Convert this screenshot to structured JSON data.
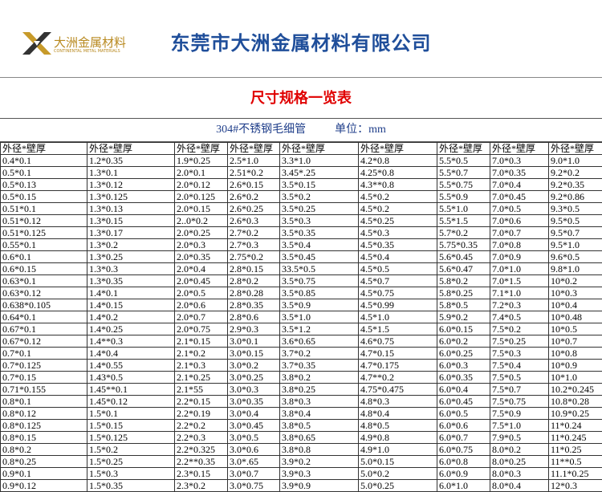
{
  "header": {
    "logo_text": "大洲金属材料",
    "logo_subtext": "CONTINENTAL METAL MATERIALS",
    "company": "东莞市大洲金属材料有限公司"
  },
  "table": {
    "title": "尺寸规格一览表",
    "subtitle": "304#不锈钢毛细管",
    "unit": "单位：mm",
    "headers": [
      "外径*壁厚",
      "外径*壁厚",
      "外径*壁厚",
      "外径*壁厚",
      "外径*壁厚",
      "外径*壁厚",
      "外径*壁厚",
      "外径*壁厚",
      "外径*壁厚"
    ],
    "rows": [
      [
        "0.4*0.1",
        "1.2*0.35",
        "1.9*0.25",
        "2.5*1.0",
        "3.3*1.0",
        "4.2*0.8",
        "5.5*0.5",
        "7.0*0.3",
        "9.0*1.0"
      ],
      [
        "0.5*0.1",
        "1.3*0.1",
        "2.0*0.1",
        "2.51*0.2",
        "3.45*.25",
        "4.25*0.8",
        "5.5*0.7",
        "7.0*0.35",
        "9.2*0.2"
      ],
      [
        "0.5*0.13",
        "1.3*0.12",
        "2.0*0.12",
        "2.6*0.15",
        "3.5*0.15",
        "4.3**0.8",
        "5.5*0.75",
        "7.0*0.4",
        "9.2*0.35"
      ],
      [
        "0.5*0.15",
        "1.3*0.125",
        "2.0*0.125",
        "2.6*0.2",
        "3.5*0.2",
        "4.5*0.2",
        "5.5*0.9",
        "7.0*0.45",
        "9.2*0.86"
      ],
      [
        "0.51*0.1",
        "1.3*0.13",
        "2.0*0.15",
        "2.6*0.25",
        "3.5*0.25",
        "4.5*0.2",
        "5.5*1.0",
        "7.0*0.5",
        "9.3*0.5"
      ],
      [
        "0.51*0.12",
        "1.3*0.15",
        "2..0*0.2",
        "2.6*0.3",
        "3.5*0.3",
        "4.5*0.25",
        "5.5*1.5",
        "7.0*0.6",
        "9.5*0.5"
      ],
      [
        "0.51*0.125",
        "1.3*0.17",
        "2.0*0.25",
        "2.7*0.2",
        "3.5*0.35",
        "4.5*0.3",
        "5.7*0.2",
        "7.0*0.7",
        "9.5*0.7"
      ],
      [
        "0.55*0.1",
        "1.3*0.2",
        "2.0*0.3",
        "2.7*0.3",
        "3.5*0.4",
        "4.5*0.35",
        "5.75*0.35",
        "7.0*0.8",
        "9.5*1.0"
      ],
      [
        "0.6*0.1",
        "1.3*0.25",
        "2.0*0.35",
        "2.75*0.2",
        "3.5*0.45",
        "4.5*0.4",
        "5.6*0.45",
        "7.0*0.9",
        "9.6*0.5"
      ],
      [
        "0.6*0.15",
        "1.3*0.3",
        "2.0*0.4",
        "2.8*0.15",
        "33.5*0.5",
        "4.5*0.5",
        "5.6*0.47",
        "7.0*1.0",
        "9.8*1.0"
      ],
      [
        "0.63*0.1",
        "1.3*0.35",
        "2.0*0.45",
        "2.8*0.2",
        "3.5*0.75",
        "4.5*0.7",
        "5.8*0.2",
        "7.0*1.5",
        "10*0.2"
      ],
      [
        "0.63*0.12",
        "1.4*0.1",
        "2.0*0.5",
        "2.8*0.28",
        "3.5*0.85",
        "4.5*0.75",
        "5.8*0.25",
        "7.1*1.0",
        "10*0.3"
      ],
      [
        "0.638*0.105",
        "1.4*0.15",
        "2.0*0.6",
        "2.8*0.35",
        "3.5*0.9",
        "4.5*0.99",
        "5.8*0.5",
        "7.2*0.3",
        "10*0.4"
      ],
      [
        "0.64*0.1",
        "1.4*0.2",
        "2.0*0.7",
        "2.8*0.6",
        "3.5*1.0",
        "4.5*1.0",
        "5.9*0.2",
        "7.4*0.5",
        "10*0.48"
      ],
      [
        "0.67*0.1",
        "1.4*0.25",
        "2.0*0.75",
        "2.9*0.3",
        "3.5*1.2",
        "4.5*1.5",
        "6.0*0.15",
        "7.5*0.2",
        "10*0.5"
      ],
      [
        "0.67*0.12",
        "1.4**0.3",
        "2.1*0.15",
        "3.0*0.1",
        "3.6*0.65",
        "4.6*0.75",
        "6.0*0.2",
        "7.5*0.25",
        "10*0.7"
      ],
      [
        "0.7*0.1",
        "1.4*0.4",
        "2.1*0.2",
        "3.0*0.15",
        "3.7*0.2",
        "4.7*0.15",
        "6.0*0.25",
        "7.5*0.3",
        "10*0.8"
      ],
      [
        "0.7*0.125",
        "1.4*0.55",
        "2.1*0.3",
        "3.0*0.2",
        "3.7*0.35",
        "4.7*0.175",
        "6.0*0.3",
        "7.5*0.4",
        "10*0.9"
      ],
      [
        "0.7*0.15",
        "1.43*0.5",
        "2.1*0.25",
        "3.0*0.25",
        "3.8*0.2",
        "4.7**0.2",
        "6.0*0.35",
        "7.5*0.5",
        "10*1.0"
      ],
      [
        "0.71*0.155",
        "1.45**0.1",
        "2.1*55",
        "3.0*0.3",
        "3.8*0.25",
        "4.75*0.475",
        "6.0*0.4",
        "7.5*0.7",
        "10.2*0.245"
      ],
      [
        "0.8*0.1",
        "1.45*0.12",
        "2.2*0.15",
        "3.0*0.35",
        "3.8*0.3",
        "4.8*0.3",
        "6.0*0.45",
        "7.5*0.75",
        "10.8*0.28"
      ],
      [
        "0.8*0.12",
        "1.5*0.1",
        "2.2*0.19",
        "3.0*0.4",
        "3.8*0.4",
        "4.8*0.4",
        "6.0*0.5",
        "7.5*0.9",
        "10.9*0.25"
      ],
      [
        "0.8*0.125",
        "1.5*0.15",
        "2.2*0.2",
        "3.0*0.45",
        "3.8*0.5",
        "4.8*0.5",
        "6.0*0.6",
        "7.5*1.0",
        "11*0.24"
      ],
      [
        "0.8*0.15",
        "1.5*0.125",
        "2.2*0.3",
        "3.0*0.5",
        "3.8*0.65",
        "4.9*0.8",
        "6.0*0.7",
        "7.9*0.5",
        "11*0.245"
      ],
      [
        "0.8*0.2",
        "1.5*0.2",
        "2.2*0.325",
        "3.0*0.6",
        "3.8*0.8",
        "4.9*1.0",
        "6.0*0.75",
        "8.0*0.2",
        "11*0.25"
      ],
      [
        "0.8*0.25",
        "1.5*0.25",
        "2.2**0.35",
        "3.0*.65",
        "3.9*0.2",
        "5.0*0.15",
        "6.0*0.8",
        "8.0*0.25",
        "11**0.5"
      ],
      [
        "0.9*0.1",
        "1.5*0.3",
        "2.3*0.15",
        "3.0*0.7",
        "3.9*0.3",
        "5.0*0.2",
        "6.0*0.9",
        "8.0*0.3",
        "11.1*0.25"
      ],
      [
        "0.9*0.12",
        "1.5*0.35",
        "2.3*0.2",
        "3.0*0.75",
        "3.9*0.9",
        "5.0*0.25",
        "6.0*1.0",
        "8.0*0.4",
        "12*0.3"
      ]
    ]
  }
}
